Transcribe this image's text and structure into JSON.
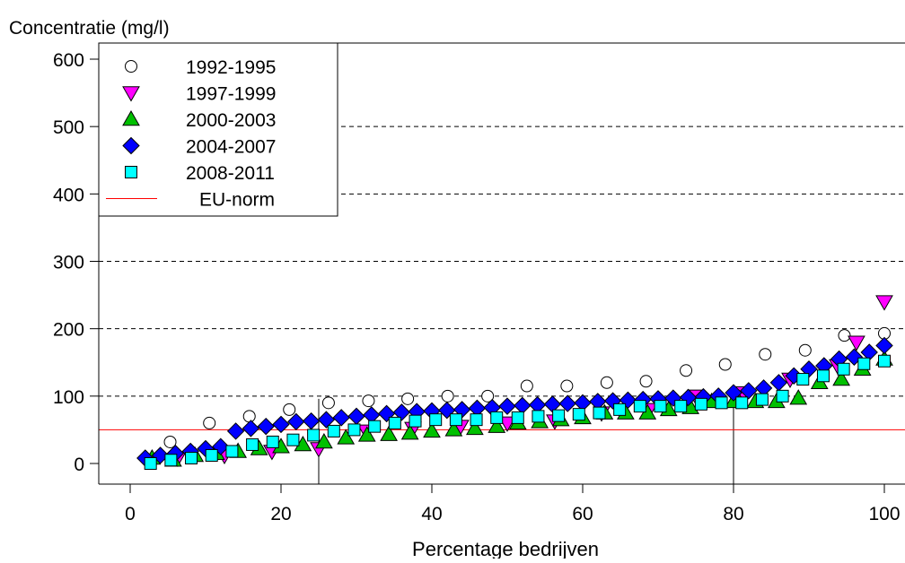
{
  "chart_data": {
    "type": "scatter",
    "ylabel": "Concentratie (mg/l)",
    "xlabel": "Percentage bedrijven",
    "xlim": [
      -4,
      101
    ],
    "ylim": [
      -30,
      620
    ],
    "x_ticks": [
      0,
      20,
      40,
      60,
      80,
      100
    ],
    "y_ticks": [
      0,
      100,
      200,
      300,
      400,
      500,
      600
    ],
    "grid": "horizontal dashed at 100, 200, 300, 400, 500",
    "legend_position": "top-left",
    "reference_line": {
      "name": "EU-norm",
      "y": 50,
      "color": "#ff0000"
    },
    "vertical_lines": [
      25,
      80
    ],
    "series": [
      {
        "name": "1992-1995",
        "marker": "circle",
        "fill": "#ffffff",
        "x": [
          5.3,
          10.5,
          15.8,
          21.1,
          26.3,
          31.6,
          36.8,
          42.1,
          47.4,
          52.6,
          57.9,
          63.2,
          68.4,
          73.7,
          78.9,
          84.2,
          89.5,
          94.7,
          100
        ],
        "y": [
          32,
          60,
          70,
          80,
          90,
          93,
          96,
          100,
          100,
          115,
          115,
          120,
          122,
          138,
          147,
          162,
          168,
          190,
          193
        ]
      },
      {
        "name": "1997-1999",
        "marker": "triangle-down",
        "fill": "#ff00ff",
        "x": [
          2.6,
          6.3,
          12.5,
          18.8,
          25,
          31.3,
          37.5,
          43.8,
          50,
          56.3,
          62.5,
          68.8,
          75,
          81.3,
          87.5,
          93.8,
          96.3,
          100
        ],
        "y": [
          5,
          8,
          12,
          18,
          22,
          48,
          52,
          55,
          60,
          63,
          75,
          80,
          100,
          105,
          125,
          145,
          180,
          240
        ]
      },
      {
        "name": "2000-2003",
        "marker": "triangle-up",
        "fill": "#00c000",
        "x": [
          2.9,
          5.7,
          8.6,
          11.4,
          14.3,
          17.1,
          20,
          22.9,
          25.7,
          28.6,
          31.4,
          34.3,
          37.1,
          40,
          42.9,
          45.7,
          48.6,
          51.4,
          54.3,
          57.1,
          60,
          62.9,
          65.7,
          68.6,
          71.4,
          74.3,
          77.1,
          80,
          82.9,
          85.7,
          88.6,
          91.4,
          94.3,
          97.1,
          100
        ],
        "y": [
          5,
          8,
          12,
          15,
          20,
          25,
          27,
          30,
          35,
          40,
          42,
          43,
          45,
          48,
          50,
          52,
          55,
          58,
          62,
          65,
          68,
          72,
          75,
          78,
          80,
          83,
          85,
          88,
          90,
          93,
          95,
          98,
          100,
          110,
          150
        ],
        "override_y": [
          8,
          5,
          12,
          15,
          18,
          22,
          25,
          28,
          32,
          38,
          42,
          43,
          45,
          48,
          50,
          52,
          55,
          60,
          62,
          65,
          68,
          75,
          75,
          75,
          80,
          83,
          92,
          92,
          92,
          92,
          97,
          120,
          125,
          140,
          155
        ]
      },
      {
        "name": "2004-2007",
        "marker": "diamond",
        "fill": "#0000ff",
        "x": [
          2,
          4,
          6,
          8,
          10,
          12,
          14,
          16,
          18,
          20,
          22,
          24,
          26,
          28,
          30,
          32,
          34,
          36,
          38,
          40,
          42,
          44,
          46,
          48,
          50,
          52,
          54,
          56,
          58,
          60,
          62,
          64,
          66,
          68,
          70,
          72,
          74,
          76,
          78,
          80,
          82,
          84,
          86,
          88,
          90,
          92,
          94,
          96,
          98,
          100
        ],
        "y": [
          8,
          12,
          15,
          18,
          22,
          25,
          48,
          52,
          55,
          58,
          62,
          63,
          65,
          68,
          70,
          72,
          74,
          76,
          77,
          78,
          79,
          80,
          82,
          83,
          85,
          86,
          87,
          88,
          89,
          90,
          92,
          93,
          94,
          95,
          96,
          97,
          98,
          99,
          100,
          105,
          108,
          112,
          120,
          130,
          140,
          145,
          155,
          158,
          165,
          175
        ]
      },
      {
        "name": "2008-2011",
        "marker": "square",
        "fill": "#00ffff",
        "x": [
          2.7,
          5.4,
          8.1,
          10.8,
          13.5,
          16.2,
          18.9,
          21.6,
          24.3,
          27,
          29.7,
          32.4,
          35.1,
          37.8,
          40.5,
          43.2,
          45.9,
          48.6,
          51.4,
          54.1,
          56.8,
          59.5,
          62.2,
          64.9,
          67.6,
          70.3,
          73,
          75.7,
          78.4,
          81.1,
          83.8,
          86.5,
          89.2,
          91.9,
          94.6,
          97.3,
          100
        ],
        "y": [
          0,
          5,
          8,
          12,
          18,
          28,
          32,
          35,
          42,
          48,
          50,
          55,
          60,
          63,
          65,
          65,
          65,
          68,
          68,
          70,
          71,
          73,
          75,
          80,
          85,
          85,
          85,
          88,
          90,
          90,
          95,
          100,
          125,
          130,
          140,
          148,
          152
        ]
      }
    ]
  }
}
